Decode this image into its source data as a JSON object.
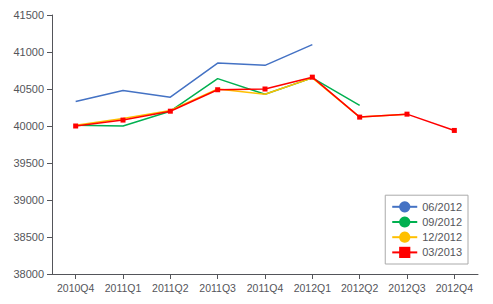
{
  "chart_data": {
    "type": "line",
    "categories": [
      "2010Q4",
      "2011Q1",
      "2011Q2",
      "2011Q3",
      "2011Q4",
      "2012Q1",
      "2012Q2",
      "2012Q3",
      "2012Q4"
    ],
    "series": [
      {
        "name": "06/2012",
        "color": "#4472C4",
        "values": [
          40330,
          40480,
          40390,
          40850,
          40820,
          41100,
          null,
          null,
          null
        ]
      },
      {
        "name": "09/2012",
        "color": "#00B050",
        "values": [
          40010,
          40000,
          40200,
          40640,
          40430,
          40650,
          40280,
          null,
          null
        ]
      },
      {
        "name": "12/2012",
        "color": "#FFC000",
        "values": [
          40010,
          40100,
          40210,
          40500,
          40430,
          40650,
          40120,
          40160,
          null
        ]
      },
      {
        "name": "03/2013",
        "color": "#FF0000",
        "marker": "square",
        "values": [
          40000,
          40080,
          40200,
          40490,
          40500,
          40660,
          40120,
          40160,
          39940
        ]
      }
    ],
    "ylim": [
      38000,
      41500
    ],
    "yticks": [
      38000,
      38500,
      39000,
      39500,
      40000,
      40500,
      41000,
      41500
    ],
    "grid": false,
    "legend": "lower right"
  }
}
